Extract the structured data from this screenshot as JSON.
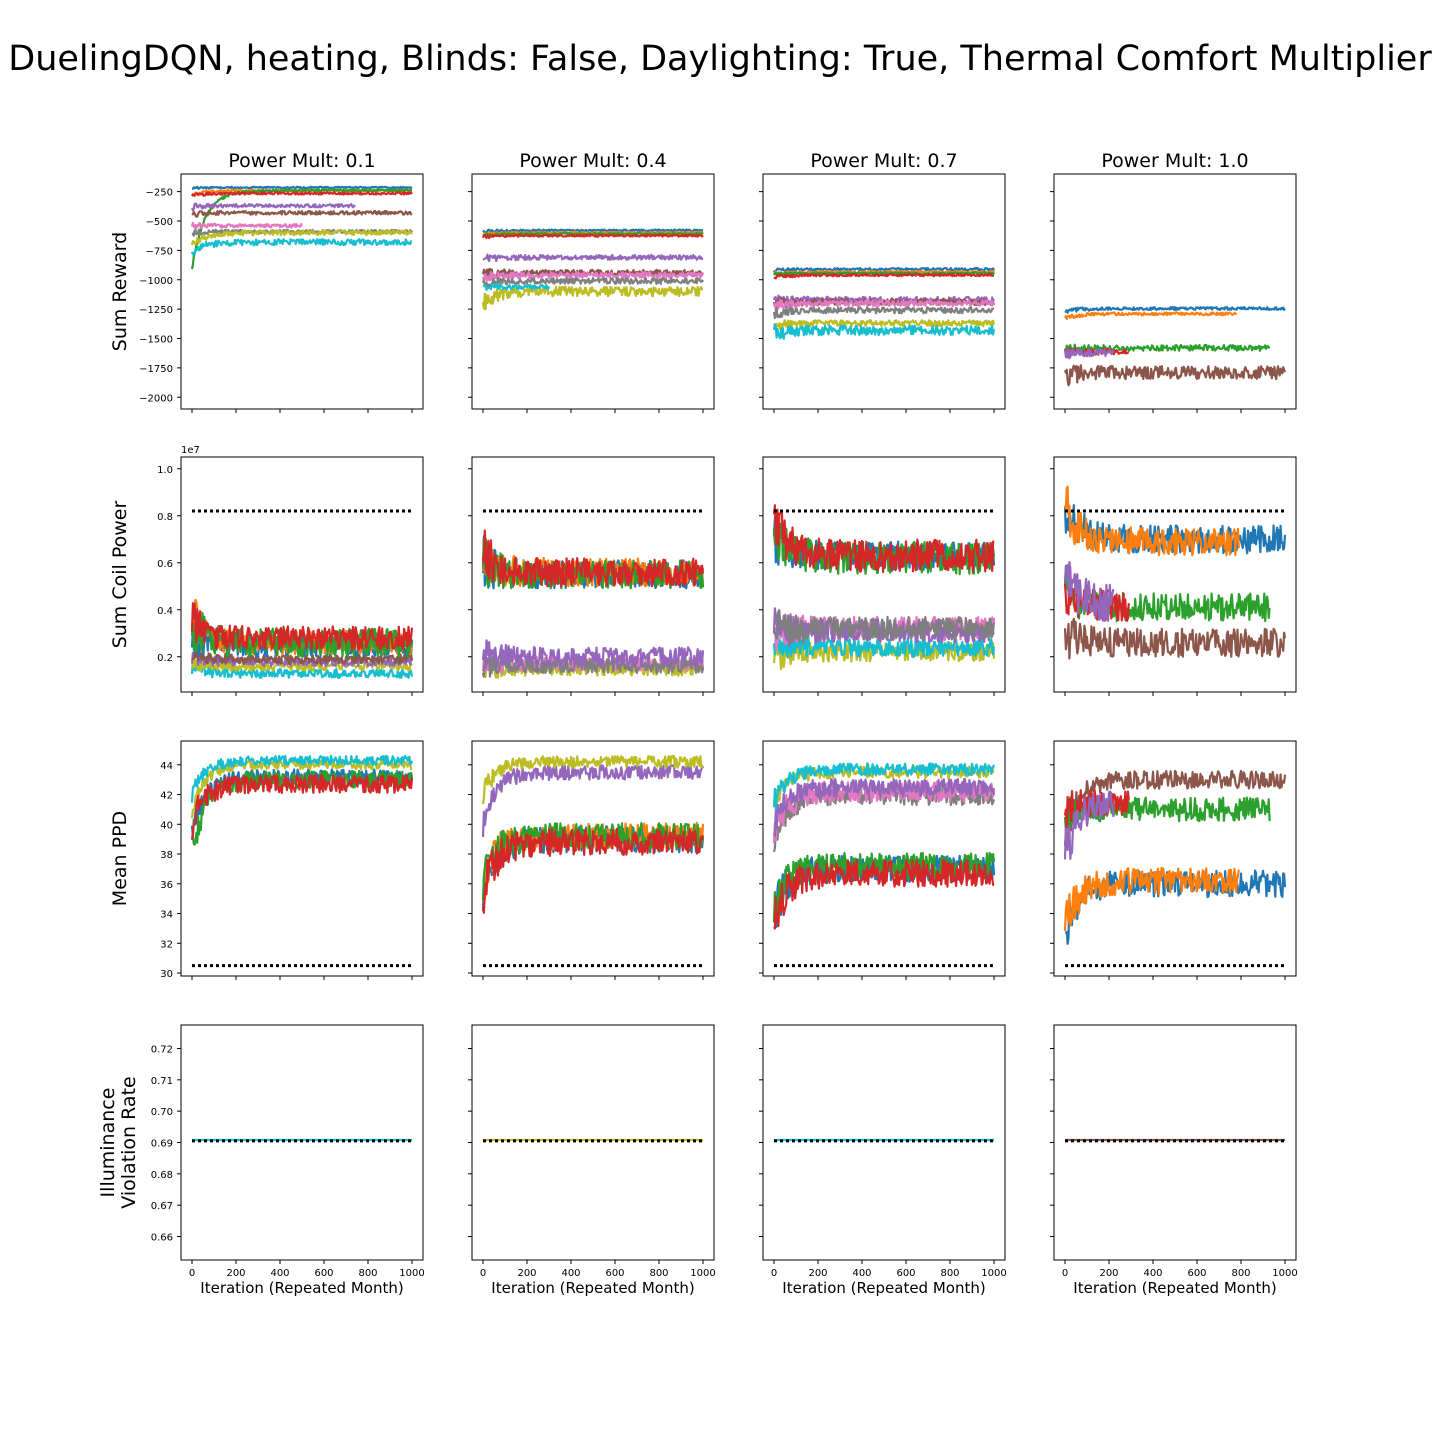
{
  "suptitle": "DuelingDQN, heating, Blinds: False, Daylighting: True, Thermal Comfort Multiplier",
  "xlabel": "Iteration (Repeated Month)",
  "xticks": [
    0,
    200,
    400,
    600,
    800,
    1000
  ],
  "palette": [
    "#1f77b4",
    "#ff7f0e",
    "#2ca02c",
    "#d62728",
    "#9467bd",
    "#8c564b",
    "#e377c2",
    "#7f7f7f",
    "#bcbd22",
    "#17becf"
  ],
  "chart_data": {
    "type": "line",
    "grid": false,
    "columns": [
      {
        "title": "Power Mult: 0.1",
        "runs": 1000
      },
      {
        "title": "Power Mult: 0.4",
        "runs": 1000
      },
      {
        "title": "Power Mult: 0.7",
        "runs": 1000
      },
      {
        "title": "Power Mult: 1.0",
        "runs": 1000
      }
    ],
    "rows": [
      {
        "ylabel": "Sum Reward",
        "ylim": [
          -2100,
          -100
        ],
        "yticks": [
          -250,
          -500,
          -750,
          -1000,
          -1250,
          -1500,
          -1750,
          -2000
        ],
        "ytick_labels": [
          "−250",
          "−500",
          "−750",
          "−1000",
          "−1250",
          "−1500",
          "−1750",
          "−2000"
        ],
        "offset_label": "",
        "reference_line": null,
        "panels": [
          [
            {
              "color": "#1f77b4",
              "start": -220,
              "level": -215,
              "noise": 6,
              "end": 1000
            },
            {
              "color": "#ff7f0e",
              "start": -280,
              "level": -240,
              "noise": 8,
              "end": 1000
            },
            {
              "color": "#2ca02c",
              "start": -900,
              "level": -240,
              "noise": 10,
              "end": 1000
            },
            {
              "color": "#d62728",
              "start": -280,
              "level": -265,
              "noise": 10,
              "end": 1000
            },
            {
              "color": "#9467bd",
              "start": -380,
              "level": -370,
              "noise": 15,
              "end": 740
            },
            {
              "color": "#8c564b",
              "start": -440,
              "level": -430,
              "noise": 15,
              "end": 1000
            },
            {
              "color": "#e377c2",
              "start": -540,
              "level": -540,
              "noise": 15,
              "end": 500
            },
            {
              "color": "#7f7f7f",
              "start": -600,
              "level": -590,
              "noise": 15,
              "end": 1000
            },
            {
              "color": "#bcbd22",
              "start": -700,
              "level": -600,
              "noise": 20,
              "end": 1000
            },
            {
              "color": "#17becf",
              "start": -760,
              "level": -680,
              "noise": 25,
              "end": 1000
            }
          ],
          [
            {
              "color": "#1f77b4",
              "start": -590,
              "level": -580,
              "noise": 8,
              "end": 1000
            },
            {
              "color": "#ff7f0e",
              "start": -610,
              "level": -600,
              "noise": 8,
              "end": 1000
            },
            {
              "color": "#2ca02c",
              "start": -620,
              "level": -610,
              "noise": 8,
              "end": 1000
            },
            {
              "color": "#d62728",
              "start": -640,
              "level": -625,
              "noise": 8,
              "end": 1000
            },
            {
              "color": "#9467bd",
              "start": -820,
              "level": -810,
              "noise": 20,
              "end": 1000
            },
            {
              "color": "#8c564b",
              "start": -950,
              "level": -940,
              "noise": 25,
              "end": 1000
            },
            {
              "color": "#e377c2",
              "start": -980,
              "level": -960,
              "noise": 25,
              "end": 1000
            },
            {
              "color": "#7f7f7f",
              "start": -1030,
              "level": -1010,
              "noise": 25,
              "end": 1000
            },
            {
              "color": "#bcbd22",
              "start": -1200,
              "level": -1100,
              "noise": 40,
              "end": 1000
            },
            {
              "color": "#17becf",
              "start": -1060,
              "level": -1060,
              "noise": 20,
              "end": 300
            }
          ],
          [
            {
              "color": "#1f77b4",
              "start": -920,
              "level": -910,
              "noise": 10,
              "end": 1000
            },
            {
              "color": "#ff7f0e",
              "start": -950,
              "level": -935,
              "noise": 10,
              "end": 1000
            },
            {
              "color": "#2ca02c",
              "start": -960,
              "level": -945,
              "noise": 10,
              "end": 1000
            },
            {
              "color": "#d62728",
              "start": -980,
              "level": -960,
              "noise": 10,
              "end": 1000
            },
            {
              "color": "#9467bd",
              "start": -1180,
              "level": -1170,
              "noise": 25,
              "end": 1000
            },
            {
              "color": "#8c564b",
              "start": -1200,
              "level": -1190,
              "noise": 25,
              "end": 1000
            },
            {
              "color": "#e377c2",
              "start": -1220,
              "level": -1200,
              "noise": 25,
              "end": 1000
            },
            {
              "color": "#7f7f7f",
              "start": -1290,
              "level": -1260,
              "noise": 25,
              "end": 1000
            },
            {
              "color": "#bcbd22",
              "start": -1390,
              "level": -1370,
              "noise": 25,
              "end": 1000
            },
            {
              "color": "#17becf",
              "start": -1460,
              "level": -1430,
              "noise": 40,
              "end": 1000
            }
          ],
          [
            {
              "color": "#1f77b4",
              "start": -1270,
              "level": -1245,
              "noise": 12,
              "end": 1000
            },
            {
              "color": "#ff7f0e",
              "start": -1330,
              "level": -1290,
              "noise": 12,
              "end": 780
            },
            {
              "color": "#2ca02c",
              "start": -1600,
              "level": -1580,
              "noise": 25,
              "end": 930
            },
            {
              "color": "#d62728",
              "start": -1620,
              "level": -1610,
              "noise": 25,
              "end": 290
            },
            {
              "color": "#9467bd",
              "start": -1620,
              "level": -1620,
              "noise": 30,
              "end": 220
            },
            {
              "color": "#8c564b",
              "start": -1820,
              "level": -1790,
              "noise": 55,
              "end": 1000
            }
          ]
        ]
      },
      {
        "ylabel": "Sum Coil Power",
        "ylim": [
          0.05,
          1.05
        ],
        "yticks": [
          0.2,
          0.4,
          0.6,
          0.8,
          1.0
        ],
        "ytick_labels": [
          "0.2",
          "0.4",
          "0.6",
          "0.8",
          "1.0"
        ],
        "offset_label": "1e7",
        "reference_line": 0.82,
        "panels": [
          [
            {
              "color": "#17becf",
              "start": 0.16,
              "level": 0.13,
              "noise": 0.02,
              "end": 1000
            },
            {
              "color": "#bcbd22",
              "start": 0.18,
              "level": 0.16,
              "noise": 0.02,
              "end": 1000
            },
            {
              "color": "#9467bd",
              "start": 0.2,
              "level": 0.18,
              "noise": 0.02,
              "end": 1000
            },
            {
              "color": "#8c564b",
              "start": 0.22,
              "level": 0.19,
              "noise": 0.02,
              "end": 1000
            },
            {
              "color": "#1f77b4",
              "start": 0.3,
              "level": 0.25,
              "noise": 0.05,
              "end": 1000
            },
            {
              "color": "#ff7f0e",
              "start": 0.4,
              "level": 0.26,
              "noise": 0.05,
              "end": 1000
            },
            {
              "color": "#2ca02c",
              "start": 0.35,
              "level": 0.26,
              "noise": 0.06,
              "end": 1000
            },
            {
              "color": "#d62728",
              "start": 0.35,
              "level": 0.28,
              "noise": 0.05,
              "end": 1000
            }
          ],
          [
            {
              "color": "#bcbd22",
              "start": 0.15,
              "level": 0.15,
              "noise": 0.03,
              "end": 1000
            },
            {
              "color": "#e377c2",
              "start": 0.17,
              "level": 0.17,
              "noise": 0.03,
              "end": 1000
            },
            {
              "color": "#7f7f7f",
              "start": 0.16,
              "level": 0.16,
              "noise": 0.03,
              "end": 1000
            },
            {
              "color": "#9467bd",
              "start": 0.22,
              "level": 0.2,
              "noise": 0.04,
              "end": 1000
            },
            {
              "color": "#1f77b4",
              "start": 0.6,
              "level": 0.55,
              "noise": 0.06,
              "end": 1000
            },
            {
              "color": "#ff7f0e",
              "start": 0.6,
              "level": 0.56,
              "noise": 0.06,
              "end": 1000
            },
            {
              "color": "#2ca02c",
              "start": 0.62,
              "level": 0.55,
              "noise": 0.06,
              "end": 1000
            },
            {
              "color": "#d62728",
              "start": 0.65,
              "level": 0.56,
              "noise": 0.06,
              "end": 1000
            }
          ],
          [
            {
              "color": "#bcbd22",
              "start": 0.2,
              "level": 0.22,
              "noise": 0.04,
              "end": 1000
            },
            {
              "color": "#17becf",
              "start": 0.28,
              "level": 0.24,
              "noise": 0.04,
              "end": 1000
            },
            {
              "color": "#e377c2",
              "start": 0.32,
              "level": 0.32,
              "noise": 0.05,
              "end": 1000
            },
            {
              "color": "#9467bd",
              "start": 0.32,
              "level": 0.31,
              "noise": 0.05,
              "end": 1000
            },
            {
              "color": "#7f7f7f",
              "start": 0.32,
              "level": 0.32,
              "noise": 0.05,
              "end": 1000
            },
            {
              "color": "#1f77b4",
              "start": 0.72,
              "level": 0.63,
              "noise": 0.06,
              "end": 1000
            },
            {
              "color": "#2ca02c",
              "start": 0.75,
              "level": 0.62,
              "noise": 0.07,
              "end": 1000
            },
            {
              "color": "#d62728",
              "start": 0.8,
              "level": 0.63,
              "noise": 0.07,
              "end": 1000
            }
          ],
          [
            {
              "color": "#1f77b4",
              "start": 0.85,
              "level": 0.7,
              "noise": 0.06,
              "end": 1000
            },
            {
              "color": "#ff7f0e",
              "start": 0.85,
              "level": 0.69,
              "noise": 0.06,
              "end": 790
            },
            {
              "color": "#2ca02c",
              "start": 0.5,
              "level": 0.41,
              "noise": 0.06,
              "end": 930
            },
            {
              "color": "#d62728",
              "start": 0.5,
              "level": 0.42,
              "noise": 0.07,
              "end": 290
            },
            {
              "color": "#9467bd",
              "start": 0.5,
              "level": 0.43,
              "noise": 0.08,
              "end": 220
            },
            {
              "color": "#8c564b",
              "start": 0.3,
              "level": 0.26,
              "noise": 0.06,
              "end": 1000
            }
          ]
        ]
      },
      {
        "ylabel": "Mean PPD",
        "ylim": [
          29.8,
          45.6
        ],
        "yticks": [
          30,
          32,
          34,
          36,
          38,
          40,
          42,
          44
        ],
        "ytick_labels": [
          "30",
          "32",
          "34",
          "36",
          "38",
          "40",
          "42",
          "44"
        ],
        "offset_label": "",
        "reference_line": 30.5,
        "panels": [
          [
            {
              "color": "#1f77b4",
              "start": 39.0,
              "level": 43.2,
              "noise": 0.5,
              "end": 1000
            },
            {
              "color": "#2ca02c",
              "start": 38.0,
              "level": 43.0,
              "noise": 0.6,
              "end": 1000
            },
            {
              "color": "#bcbd22",
              "start": 41.0,
              "level": 44.0,
              "noise": 0.3,
              "end": 1000
            },
            {
              "color": "#17becf",
              "start": 42.0,
              "level": 44.3,
              "noise": 0.3,
              "end": 1000
            },
            {
              "color": "#d62728",
              "start": 40.0,
              "level": 42.7,
              "noise": 0.6,
              "end": 1000
            }
          ],
          [
            {
              "color": "#9467bd",
              "start": 40.0,
              "level": 43.5,
              "noise": 0.5,
              "end": 1000
            },
            {
              "color": "#bcbd22",
              "start": 42.0,
              "level": 44.2,
              "noise": 0.4,
              "end": 1000
            },
            {
              "color": "#1f77b4",
              "start": 35.5,
              "level": 39.0,
              "noise": 0.9,
              "end": 1000
            },
            {
              "color": "#ff7f0e",
              "start": 36.0,
              "level": 39.2,
              "noise": 0.9,
              "end": 1000
            },
            {
              "color": "#2ca02c",
              "start": 36.0,
              "level": 39.2,
              "noise": 0.9,
              "end": 1000
            },
            {
              "color": "#d62728",
              "start": 35.5,
              "level": 38.8,
              "noise": 0.9,
              "end": 1000
            }
          ],
          [
            {
              "color": "#7f7f7f",
              "start": 39.0,
              "level": 42.0,
              "noise": 0.7,
              "end": 1000
            },
            {
              "color": "#e377c2",
              "start": 39.5,
              "level": 42.2,
              "noise": 0.7,
              "end": 1000
            },
            {
              "color": "#9467bd",
              "start": 40.0,
              "level": 42.5,
              "noise": 0.6,
              "end": 1000
            },
            {
              "color": "#bcbd22",
              "start": 41.5,
              "level": 43.5,
              "noise": 0.4,
              "end": 1000
            },
            {
              "color": "#17becf",
              "start": 41.5,
              "level": 43.7,
              "noise": 0.4,
              "end": 1000
            },
            {
              "color": "#1f77b4",
              "start": 34.0,
              "level": 37.0,
              "noise": 0.9,
              "end": 1000
            },
            {
              "color": "#2ca02c",
              "start": 34.0,
              "level": 37.2,
              "noise": 0.9,
              "end": 1000
            },
            {
              "color": "#d62728",
              "start": 33.5,
              "level": 36.7,
              "noise": 0.9,
              "end": 1000
            }
          ],
          [
            {
              "color": "#8c564b",
              "start": 39.0,
              "level": 43.0,
              "noise": 0.6,
              "end": 1000
            },
            {
              "color": "#2ca02c",
              "start": 41.0,
              "level": 41.0,
              "noise": 0.8,
              "end": 930
            },
            {
              "color": "#d62728",
              "start": 41.0,
              "level": 41.5,
              "noise": 0.8,
              "end": 290
            },
            {
              "color": "#9467bd",
              "start": 38.0,
              "level": 41.5,
              "noise": 0.9,
              "end": 220
            },
            {
              "color": "#1f77b4",
              "start": 33.0,
              "level": 36.0,
              "noise": 0.9,
              "end": 1000
            },
            {
              "color": "#ff7f0e",
              "start": 33.0,
              "level": 36.2,
              "noise": 0.9,
              "end": 790
            }
          ]
        ]
      },
      {
        "ylabel": "Illuminance Violation Rate",
        "ylabel_lines": [
          "Illuminance",
          "Violation Rate"
        ],
        "ylim": [
          0.6525,
          0.7275
        ],
        "yticks": [
          0.66,
          0.67,
          0.68,
          0.69,
          0.7,
          0.71,
          0.72
        ],
        "ytick_labels": [
          "0.66",
          "0.67",
          "0.68",
          "0.69",
          "0.70",
          "0.71",
          "0.72"
        ],
        "offset_label": "",
        "reference_line": 0.6905,
        "panels": [
          [
            {
              "color": "#17becf",
              "start": 0.6908,
              "level": 0.6908,
              "noise": 0,
              "end": 1000
            }
          ],
          [
            {
              "color": "#bcbd22",
              "start": 0.6908,
              "level": 0.6908,
              "noise": 0,
              "end": 1000
            }
          ],
          [
            {
              "color": "#17becf",
              "start": 0.6908,
              "level": 0.6908,
              "noise": 0,
              "end": 1000
            }
          ],
          [
            {
              "color": "#8c564b",
              "start": 0.6908,
              "level": 0.6908,
              "noise": 0,
              "end": 1000
            }
          ]
        ]
      }
    ]
  }
}
